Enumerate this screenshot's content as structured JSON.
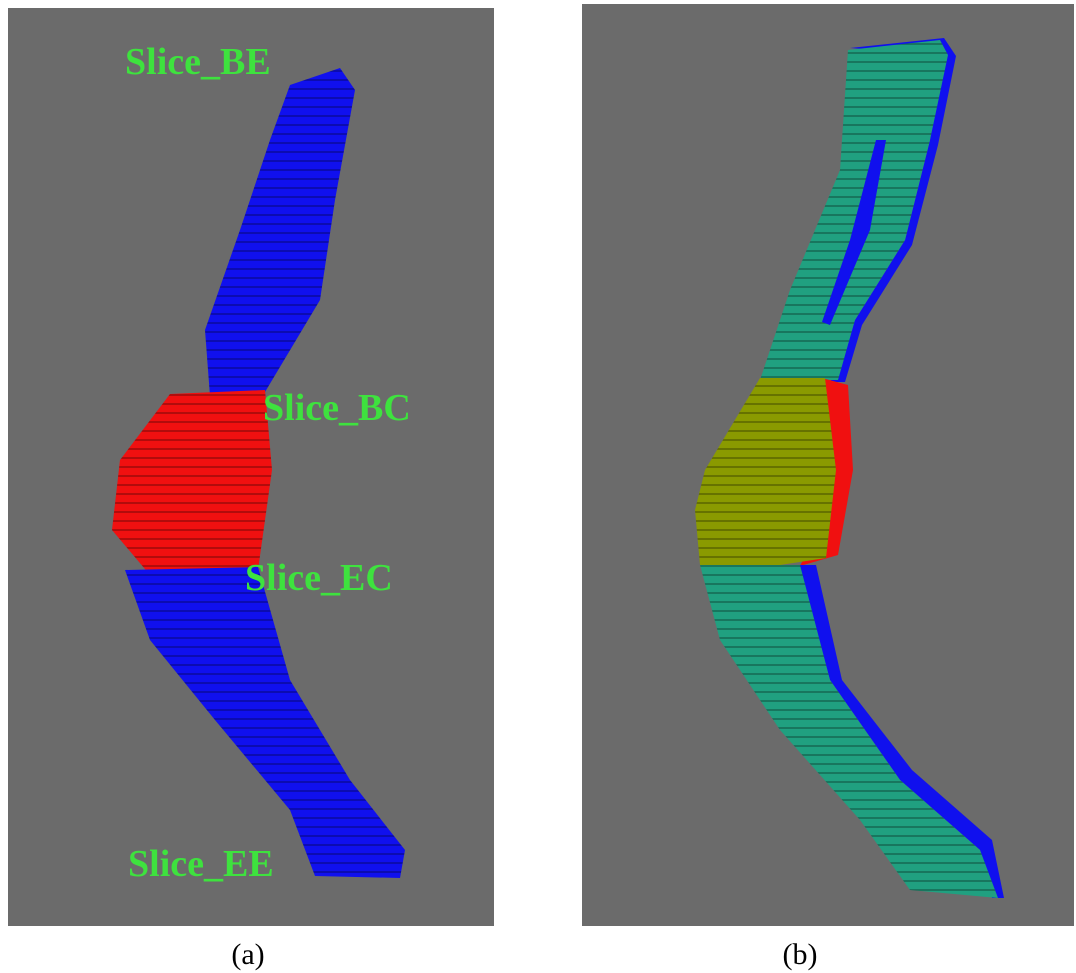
{
  "panels": [
    {
      "caption": "(a)",
      "labels": [
        "Slice_BE",
        "Slice_BC",
        "Slice_EC",
        "Slice_EE"
      ]
    },
    {
      "caption": "(b)"
    }
  ]
}
